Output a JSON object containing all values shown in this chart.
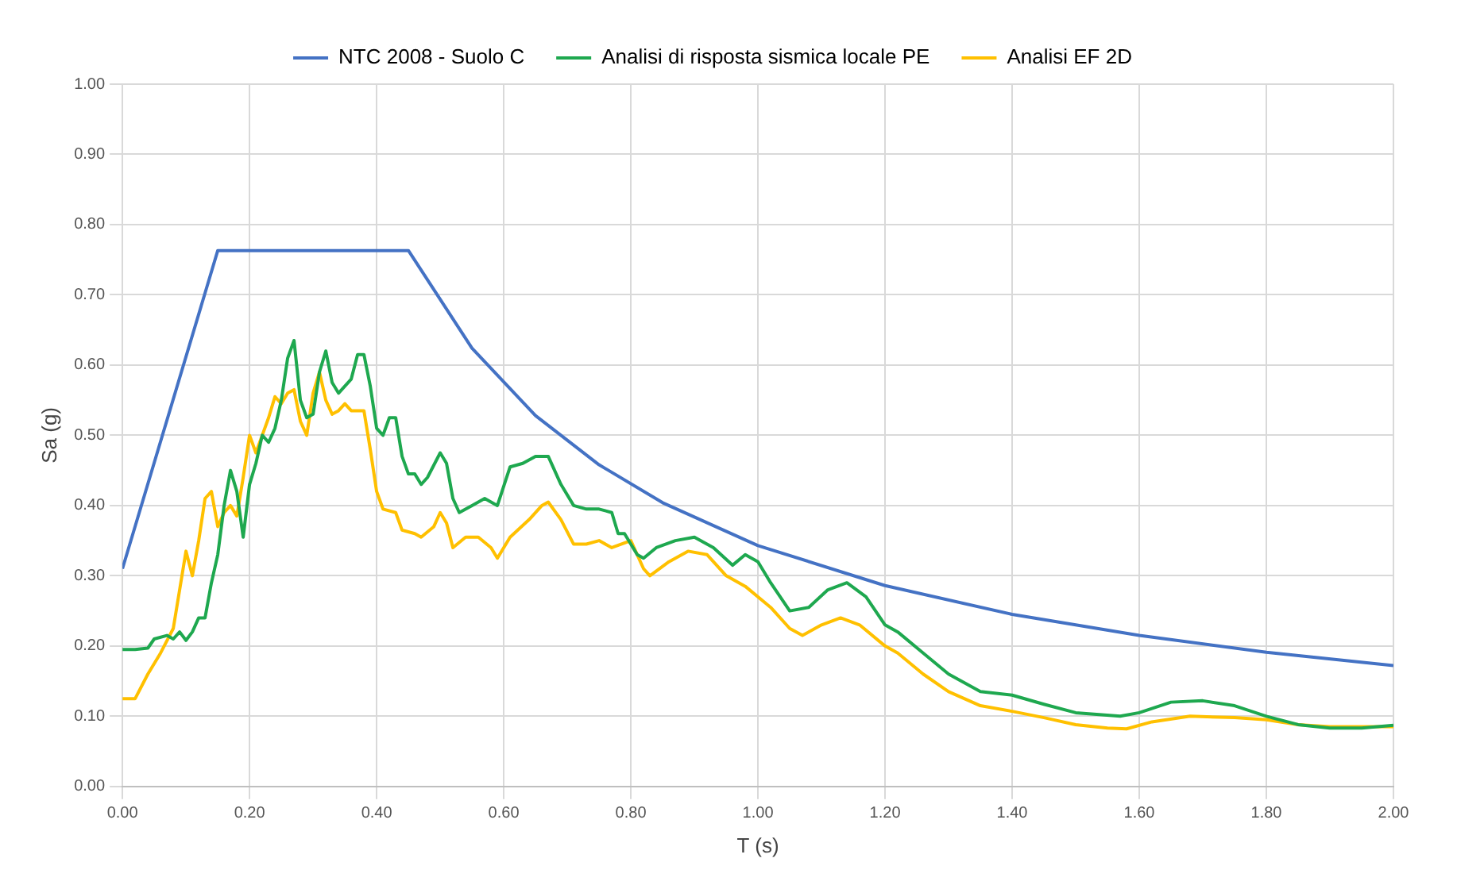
{
  "chart_data": {
    "type": "line",
    "xlabel": "T (s)",
    "ylabel": "Sa (g)",
    "xlim": [
      0,
      2
    ],
    "ylim": [
      0,
      1
    ],
    "xticks": [
      {
        "value": 0,
        "label": "0.00"
      },
      {
        "value": 0.2,
        "label": "0.20"
      },
      {
        "value": 0.4,
        "label": "0.40"
      },
      {
        "value": 0.6,
        "label": "0.60"
      },
      {
        "value": 0.8,
        "label": "0.80"
      },
      {
        "value": 1,
        "label": "1.00"
      },
      {
        "value": 1.2,
        "label": "1.20"
      },
      {
        "value": 1.4,
        "label": "1.40"
      },
      {
        "value": 1.6,
        "label": "1.60"
      },
      {
        "value": 1.8,
        "label": "1.80"
      },
      {
        "value": 2,
        "label": "2.00"
      }
    ],
    "yticks": [
      {
        "value": 0,
        "label": "0.00"
      },
      {
        "value": 0.1,
        "label": "0.10"
      },
      {
        "value": 0.2,
        "label": "0.20"
      },
      {
        "value": 0.3,
        "label": "0.30"
      },
      {
        "value": 0.4,
        "label": "0.40"
      },
      {
        "value": 0.5,
        "label": "0.50"
      },
      {
        "value": 0.6,
        "label": "0.60"
      },
      {
        "value": 0.7,
        "label": "0.70"
      },
      {
        "value": 0.8,
        "label": "0.80"
      },
      {
        "value": 0.9,
        "label": "0.90"
      },
      {
        "value": 1,
        "label": "1.00"
      }
    ],
    "grid": true,
    "legend": "top",
    "marker": "none",
    "line_style": "solid",
    "series": [
      {
        "name": "NTC 2008 - Suolo C",
        "color": "#4472c4",
        "x": [
          0,
          0.15,
          0.45,
          0.55,
          0.65,
          0.75,
          0.85,
          1.0,
          1.2,
          1.4,
          1.6,
          1.8,
          2.0
        ],
        "values": [
          0.31,
          0.763,
          0.763,
          0.624,
          0.528,
          0.458,
          0.404,
          0.343,
          0.286,
          0.245,
          0.215,
          0.191,
          0.172
        ]
      },
      {
        "name": "Analisi di risposta sismica locale PE",
        "color": "#1ea84f",
        "x": [
          0,
          0.02,
          0.04,
          0.05,
          0.07,
          0.08,
          0.09,
          0.1,
          0.11,
          0.12,
          0.13,
          0.14,
          0.15,
          0.16,
          0.17,
          0.18,
          0.19,
          0.2,
          0.21,
          0.22,
          0.23,
          0.24,
          0.25,
          0.26,
          0.27,
          0.28,
          0.29,
          0.3,
          0.31,
          0.32,
          0.33,
          0.34,
          0.36,
          0.37,
          0.38,
          0.39,
          0.4,
          0.41,
          0.42,
          0.43,
          0.44,
          0.45,
          0.46,
          0.47,
          0.48,
          0.5,
          0.51,
          0.52,
          0.53,
          0.55,
          0.57,
          0.59,
          0.61,
          0.63,
          0.65,
          0.67,
          0.69,
          0.71,
          0.73,
          0.75,
          0.77,
          0.78,
          0.79,
          0.81,
          0.82,
          0.84,
          0.87,
          0.9,
          0.93,
          0.96,
          0.98,
          1.0,
          1.02,
          1.05,
          1.08,
          1.11,
          1.14,
          1.17,
          1.2,
          1.22,
          1.26,
          1.3,
          1.35,
          1.4,
          1.45,
          1.5,
          1.57,
          1.6,
          1.65,
          1.7,
          1.75,
          1.8,
          1.85,
          1.9,
          1.95,
          2.0
        ],
        "values": [
          0.195,
          0.195,
          0.197,
          0.21,
          0.215,
          0.21,
          0.22,
          0.208,
          0.22,
          0.24,
          0.24,
          0.29,
          0.33,
          0.4,
          0.45,
          0.42,
          0.355,
          0.43,
          0.46,
          0.5,
          0.49,
          0.51,
          0.55,
          0.61,
          0.635,
          0.55,
          0.525,
          0.53,
          0.59,
          0.62,
          0.575,
          0.56,
          0.58,
          0.615,
          0.615,
          0.57,
          0.51,
          0.5,
          0.525,
          0.525,
          0.47,
          0.445,
          0.445,
          0.43,
          0.44,
          0.475,
          0.46,
          0.41,
          0.39,
          0.4,
          0.41,
          0.4,
          0.455,
          0.46,
          0.47,
          0.47,
          0.43,
          0.4,
          0.395,
          0.395,
          0.39,
          0.36,
          0.36,
          0.33,
          0.325,
          0.34,
          0.35,
          0.355,
          0.34,
          0.315,
          0.33,
          0.32,
          0.29,
          0.25,
          0.255,
          0.28,
          0.29,
          0.27,
          0.23,
          0.22,
          0.19,
          0.16,
          0.135,
          0.13,
          0.117,
          0.105,
          0.1,
          0.105,
          0.12,
          0.122,
          0.115,
          0.1,
          0.088,
          0.083,
          0.083,
          0.087
        ]
      },
      {
        "name": "Analisi EF 2D",
        "color": "#ffc000",
        "x": [
          0,
          0.02,
          0.04,
          0.06,
          0.08,
          0.1,
          0.11,
          0.12,
          0.13,
          0.14,
          0.15,
          0.16,
          0.17,
          0.18,
          0.19,
          0.2,
          0.21,
          0.22,
          0.23,
          0.24,
          0.25,
          0.26,
          0.27,
          0.28,
          0.29,
          0.3,
          0.31,
          0.32,
          0.33,
          0.34,
          0.35,
          0.36,
          0.38,
          0.39,
          0.4,
          0.41,
          0.43,
          0.44,
          0.46,
          0.47,
          0.49,
          0.5,
          0.51,
          0.52,
          0.54,
          0.56,
          0.58,
          0.59,
          0.61,
          0.64,
          0.66,
          0.67,
          0.69,
          0.71,
          0.73,
          0.75,
          0.77,
          0.8,
          0.82,
          0.83,
          0.86,
          0.89,
          0.92,
          0.95,
          0.98,
          1.02,
          1.05,
          1.07,
          1.1,
          1.13,
          1.16,
          1.2,
          1.22,
          1.26,
          1.3,
          1.35,
          1.4,
          1.45,
          1.5,
          1.55,
          1.58,
          1.62,
          1.68,
          1.75,
          1.8,
          1.85,
          1.9,
          1.95,
          2.0
        ],
        "values": [
          0.125,
          0.125,
          0.16,
          0.19,
          0.225,
          0.335,
          0.3,
          0.35,
          0.41,
          0.42,
          0.37,
          0.39,
          0.4,
          0.385,
          0.44,
          0.5,
          0.475,
          0.5,
          0.525,
          0.555,
          0.545,
          0.56,
          0.565,
          0.52,
          0.5,
          0.56,
          0.59,
          0.55,
          0.53,
          0.535,
          0.545,
          0.535,
          0.535,
          0.48,
          0.42,
          0.395,
          0.39,
          0.365,
          0.36,
          0.355,
          0.37,
          0.39,
          0.375,
          0.34,
          0.355,
          0.355,
          0.34,
          0.325,
          0.355,
          0.38,
          0.4,
          0.405,
          0.38,
          0.345,
          0.345,
          0.35,
          0.34,
          0.35,
          0.31,
          0.3,
          0.32,
          0.335,
          0.33,
          0.3,
          0.285,
          0.255,
          0.225,
          0.215,
          0.23,
          0.24,
          0.23,
          0.2,
          0.19,
          0.16,
          0.135,
          0.115,
          0.107,
          0.098,
          0.088,
          0.083,
          0.082,
          0.092,
          0.1,
          0.098,
          0.095,
          0.088,
          0.085,
          0.085,
          0.085
        ]
      }
    ]
  }
}
